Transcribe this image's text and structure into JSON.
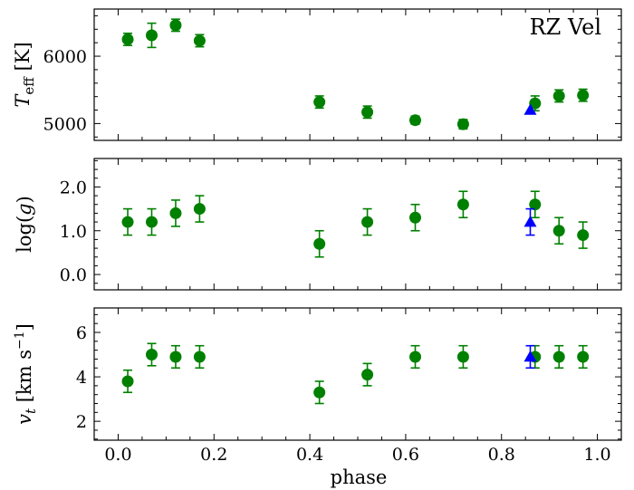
{
  "chart_data": {
    "type": "scatter",
    "xlabel": "phase",
    "xlim": [
      -0.05,
      1.05
    ],
    "xticks": [
      "0.0",
      "0.2",
      "0.4",
      "0.6",
      "0.8",
      "1.0"
    ],
    "xtick_values": [
      0.0,
      0.2,
      0.4,
      0.6,
      0.8,
      1.0
    ],
    "marker_colors": {
      "green": "#008000",
      "blue": "#0000ff"
    },
    "panels": [
      {
        "name": "teff",
        "ylabel_base": "T",
        "ylabel_sub": "eff",
        "ylabel_unit": " [K]",
        "ylim": [
          4750,
          6700
        ],
        "yticks": [
          "5000",
          "6000"
        ],
        "ytick_values": [
          5000,
          6000
        ],
        "annotation": "RZ Vel",
        "series": [
          {
            "name": "green circles",
            "marker": "circle",
            "x": [
              0.02,
              0.07,
              0.12,
              0.17,
              0.42,
              0.52,
              0.62,
              0.72,
              0.87,
              0.92,
              0.97
            ],
            "y": [
              6250,
              6310,
              6460,
              6230,
              5320,
              5170,
              5050,
              4990,
              5300,
              5410,
              5420
            ],
            "yerr": [
              90,
              180,
              90,
              90,
              90,
              90,
              60,
              70,
              110,
              90,
              90
            ]
          },
          {
            "name": "blue triangle",
            "marker": "triangle",
            "x": [
              0.86
            ],
            "y": [
              5200
            ],
            "yerr": [
              0
            ]
          }
        ]
      },
      {
        "name": "logg",
        "ylabel_base": "log(",
        "ylabel_var": "g",
        "ylabel_close": ")",
        "ylim": [
          -0.35,
          2.65
        ],
        "yticks": [
          "0.0",
          "1.0",
          "2.0"
        ],
        "ytick_values": [
          0.0,
          1.0,
          2.0
        ],
        "series": [
          {
            "name": "green circles",
            "marker": "circle",
            "x": [
              0.02,
              0.07,
              0.12,
              0.17,
              0.42,
              0.52,
              0.62,
              0.72,
              0.87,
              0.92,
              0.97
            ],
            "y": [
              1.2,
              1.2,
              1.4,
              1.5,
              0.7,
              1.2,
              1.3,
              1.6,
              1.6,
              1.0,
              0.9
            ],
            "yerr": [
              0.3,
              0.3,
              0.3,
              0.3,
              0.3,
              0.3,
              0.3,
              0.3,
              0.3,
              0.3,
              0.3
            ]
          },
          {
            "name": "blue triangle",
            "marker": "triangle",
            "x": [
              0.86
            ],
            "y": [
              1.2
            ],
            "yerr": [
              0.3
            ]
          }
        ]
      },
      {
        "name": "vt",
        "ylabel_base": "v",
        "ylabel_sub": "t",
        "ylabel_unit": " [km s",
        "ylabel_sup": "−1",
        "ylabel_close": "]",
        "ylim": [
          1.15,
          7.1
        ],
        "yticks": [
          "2",
          "4",
          "6"
        ],
        "ytick_values": [
          2,
          4,
          6
        ],
        "series": [
          {
            "name": "green circles",
            "marker": "circle",
            "x": [
              0.02,
              0.07,
              0.12,
              0.17,
              0.42,
              0.52,
              0.62,
              0.72,
              0.87,
              0.92,
              0.97
            ],
            "y": [
              3.8,
              5.0,
              4.9,
              4.9,
              3.3,
              4.1,
              4.9,
              4.9,
              4.9,
              4.9,
              4.9
            ],
            "yerr": [
              0.5,
              0.5,
              0.5,
              0.5,
              0.5,
              0.5,
              0.5,
              0.5,
              0.5,
              0.5,
              0.5
            ]
          },
          {
            "name": "blue triangle",
            "marker": "triangle",
            "x": [
              0.86
            ],
            "y": [
              4.9
            ],
            "yerr": [
              0.5
            ]
          }
        ]
      }
    ]
  }
}
